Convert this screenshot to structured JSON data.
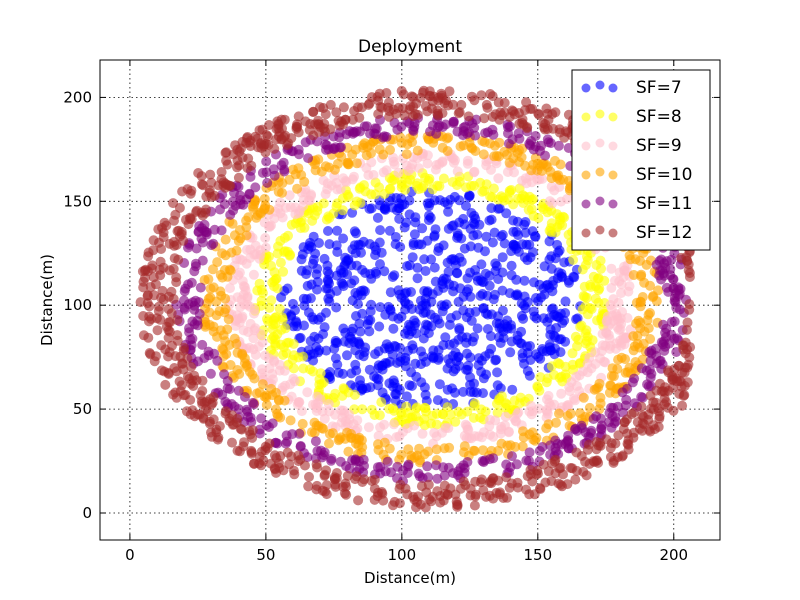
{
  "chart_data": {
    "type": "scatter",
    "title": "Deployment",
    "xlabel": "Distance(m)",
    "ylabel": "Distance(m)",
    "xlim": [
      -11,
      217
    ],
    "ylim": [
      -13,
      218
    ],
    "xticks": [
      0,
      50,
      100,
      150,
      200
    ],
    "yticks": [
      0,
      50,
      100,
      150,
      200
    ],
    "grid": true,
    "legend_position": "top-right",
    "center": [
      115,
      115
    ],
    "series": [
      {
        "name": "SF=7",
        "color": "#0000ff",
        "ring": [
          0,
          58
        ],
        "count": 700
      },
      {
        "name": "SF=8",
        "color": "#ffff00",
        "ring": [
          58,
          68
        ],
        "count": 380
      },
      {
        "name": "SF=9",
        "color": "#ffc0cb",
        "ring": [
          68,
          78
        ],
        "count": 420
      },
      {
        "name": "SF=10",
        "color": "#ffa500",
        "ring": [
          78,
          88
        ],
        "count": 460
      },
      {
        "name": "SF=11",
        "color": "#800080",
        "ring": [
          88,
          98
        ],
        "count": 500
      },
      {
        "name": "SF=12",
        "color": "#a52a2a",
        "ring": [
          98,
          112
        ],
        "count": 900
      }
    ]
  }
}
